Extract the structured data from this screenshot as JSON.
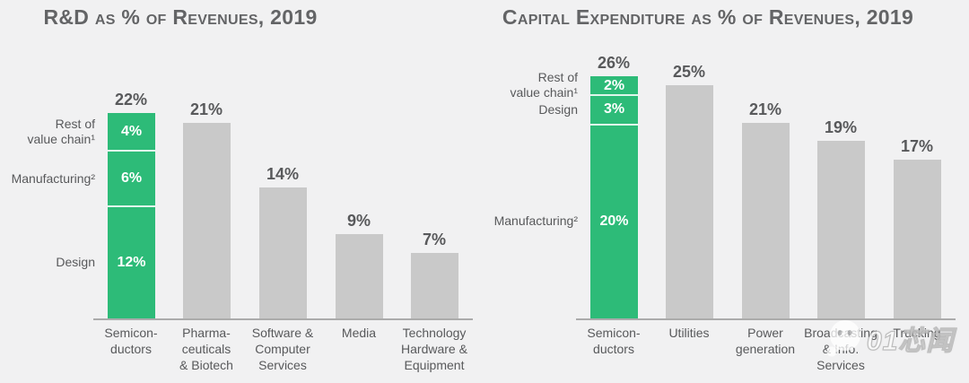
{
  "watermark": {
    "text": "01芯闻",
    "icon": "wechat-icon"
  },
  "chart_data": [
    {
      "type": "bar",
      "title": "R&D as % of Revenues, 2019",
      "unit": "% of revenues",
      "grid": false,
      "legend": "none",
      "ylim": [
        0,
        26
      ],
      "highlight_color": "#2dbb78",
      "bar_color": "#c9c9c9",
      "categories": [
        "Semiconductors",
        "Pharmaceuticals & Biotech",
        "Software & Computer Services",
        "Media",
        "Technology Hardware & Equipment"
      ],
      "bars": [
        {
          "category_lines": [
            "Semicon-",
            "ductors"
          ],
          "total": 22,
          "total_label": "22%",
          "highlighted": true,
          "segments": [
            {
              "name": "Design",
              "value": 12,
              "label": "12%"
            },
            {
              "name": "Manufacturing",
              "value": 6,
              "label": "6%"
            },
            {
              "name": "Rest of value chain",
              "value": 4,
              "label": "4%"
            }
          ]
        },
        {
          "category_lines": [
            "Pharma-",
            "ceuticals",
            "& Biotech"
          ],
          "total": 21,
          "total_label": "21%",
          "highlighted": false
        },
        {
          "category_lines": [
            "Software &",
            "Computer",
            "Services"
          ],
          "total": 14,
          "total_label": "14%",
          "highlighted": false
        },
        {
          "category_lines": [
            "Media"
          ],
          "total": 9,
          "total_label": "9%",
          "highlighted": false
        },
        {
          "category_lines": [
            "Technology",
            "Hardware &",
            "Equipment"
          ],
          "total": 7,
          "total_label": "7%",
          "highlighted": false
        }
      ],
      "side_labels": [
        {
          "lines": [
            "Rest of",
            "value chain¹"
          ],
          "segment_index": 2
        },
        {
          "lines": [
            "Manufacturing²"
          ],
          "segment_index": 1
        },
        {
          "lines": [
            "Design"
          ],
          "segment_index": 0
        }
      ]
    },
    {
      "type": "bar",
      "title": "Capital Expenditure as % of Revenues, 2019",
      "unit": "% of revenues",
      "grid": false,
      "legend": "none",
      "ylim": [
        0,
        26
      ],
      "highlight_color": "#2dbb78",
      "bar_color": "#c9c9c9",
      "categories": [
        "Semiconductors",
        "Utilities",
        "Power generation",
        "Broadcasting & Info. Services",
        "Trucking"
      ],
      "bars": [
        {
          "category_lines": [
            "Semicon-",
            "ductors"
          ],
          "total": 26,
          "total_label": "26%",
          "highlighted": true,
          "segments": [
            {
              "name": "Manufacturing",
              "value": 20,
              "label": "20%"
            },
            {
              "name": "Design",
              "value": 3,
              "label": "3%"
            },
            {
              "name": "Rest of value chain",
              "value": 2,
              "label": "2%"
            }
          ]
        },
        {
          "category_lines": [
            "Utilities"
          ],
          "total": 25,
          "total_label": "25%",
          "highlighted": false
        },
        {
          "category_lines": [
            "Power",
            "generation"
          ],
          "total": 21,
          "total_label": "21%",
          "highlighted": false
        },
        {
          "category_lines": [
            "Broadcasting",
            "& Info.",
            "Services"
          ],
          "total": 19,
          "total_label": "19%",
          "highlighted": false
        },
        {
          "category_lines": [
            "Trucking"
          ],
          "total": 17,
          "total_label": "17%",
          "highlighted": false
        }
      ],
      "side_labels": [
        {
          "lines": [
            "Rest of",
            "value chain¹"
          ],
          "segment_index": 2
        },
        {
          "lines": [
            "Design"
          ],
          "segment_index": 1
        },
        {
          "lines": [
            "Manufacturing²"
          ],
          "segment_index": 0
        }
      ]
    }
  ]
}
